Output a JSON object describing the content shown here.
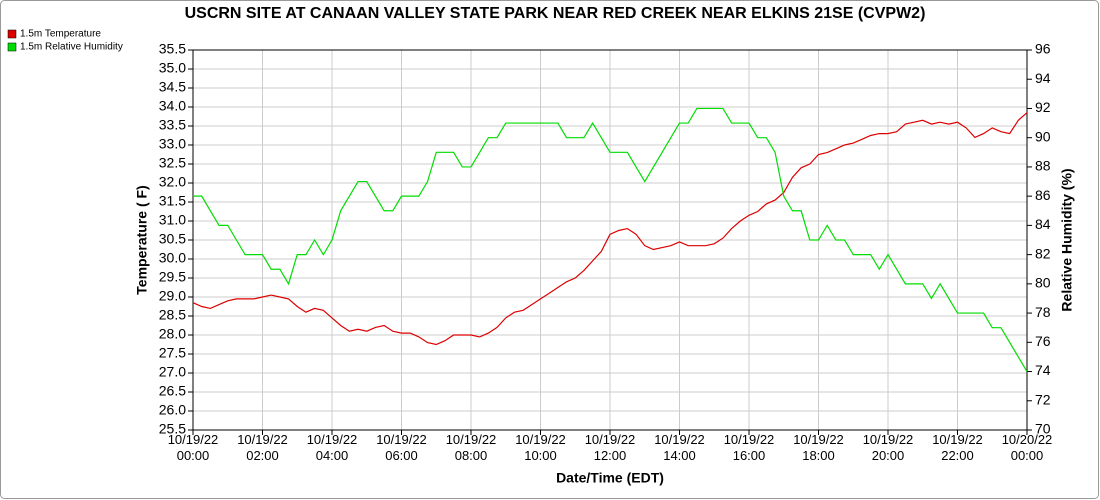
{
  "chart_data": {
    "type": "line",
    "title": "USCRN SITE AT CANAAN VALLEY STATE PARK NEAR RED CREEK NEAR ELKINS 21SE (CVPW2)",
    "xlabel": "Date/Time (EDT)",
    "ylabel": "Temperature ( F)",
    "y2label": "Relative Humidity (%)",
    "x": [
      "10/19/22 00:00",
      "10/19/22 00:15",
      "10/19/22 00:30",
      "10/19/22 00:45",
      "10/19/22 01:00",
      "10/19/22 01:15",
      "10/19/22 01:30",
      "10/19/22 01:45",
      "10/19/22 02:00",
      "10/19/22 02:15",
      "10/19/22 02:30",
      "10/19/22 02:45",
      "10/19/22 03:00",
      "10/19/22 03:15",
      "10/19/22 03:30",
      "10/19/22 03:45",
      "10/19/22 04:00",
      "10/19/22 04:15",
      "10/19/22 04:30",
      "10/19/22 04:45",
      "10/19/22 05:00",
      "10/19/22 05:15",
      "10/19/22 05:30",
      "10/19/22 05:45",
      "10/19/22 06:00",
      "10/19/22 06:15",
      "10/19/22 06:30",
      "10/19/22 06:45",
      "10/19/22 07:00",
      "10/19/22 07:15",
      "10/19/22 07:30",
      "10/19/22 07:45",
      "10/19/22 08:00",
      "10/19/22 08:15",
      "10/19/22 08:30",
      "10/19/22 08:45",
      "10/19/22 09:00",
      "10/19/22 09:15",
      "10/19/22 09:30",
      "10/19/22 09:45",
      "10/19/22 10:00",
      "10/19/22 10:15",
      "10/19/22 10:30",
      "10/19/22 10:45",
      "10/19/22 11:00",
      "10/19/22 11:15",
      "10/19/22 11:30",
      "10/19/22 11:45",
      "10/19/22 12:00",
      "10/19/22 12:15",
      "10/19/22 12:30",
      "10/19/22 12:45",
      "10/19/22 13:00",
      "10/19/22 13:15",
      "10/19/22 13:30",
      "10/19/22 13:45",
      "10/19/22 14:00",
      "10/19/22 14:15",
      "10/19/22 14:30",
      "10/19/22 14:45",
      "10/19/22 15:00",
      "10/19/22 15:15",
      "10/19/22 15:30",
      "10/19/22 15:45",
      "10/19/22 16:00",
      "10/19/22 16:15",
      "10/19/22 16:30",
      "10/19/22 16:45",
      "10/19/22 17:00",
      "10/19/22 17:15",
      "10/19/22 17:30",
      "10/19/22 17:45",
      "10/19/22 18:00",
      "10/19/22 18:15",
      "10/19/22 18:30",
      "10/19/22 18:45",
      "10/19/22 19:00",
      "10/19/22 19:15",
      "10/19/22 19:30",
      "10/19/22 19:45",
      "10/19/22 20:00",
      "10/19/22 20:15",
      "10/19/22 20:30",
      "10/19/22 20:45",
      "10/19/22 21:00",
      "10/19/22 21:15",
      "10/19/22 21:30",
      "10/19/22 21:45",
      "10/19/22 22:00",
      "10/19/22 22:15",
      "10/19/22 22:30",
      "10/19/22 22:45",
      "10/19/22 23:00",
      "10/19/22 23:15",
      "10/19/22 23:30",
      "10/19/22 23:45",
      "10/20/22 00:00"
    ],
    "series": [
      {
        "name": "1.5m Temperature",
        "color": "#dd0000",
        "values": [
          28.85,
          28.75,
          28.7,
          28.8,
          28.9,
          28.95,
          28.95,
          28.95,
          29.0,
          29.05,
          29.0,
          28.95,
          28.75,
          28.6,
          28.7,
          28.65,
          28.45,
          28.25,
          28.1,
          28.15,
          28.1,
          28.2,
          28.25,
          28.1,
          28.05,
          28.05,
          27.95,
          27.8,
          27.75,
          27.85,
          28.0,
          28.0,
          28.0,
          27.95,
          28.05,
          28.2,
          28.45,
          28.6,
          28.65,
          28.8,
          28.95,
          29.1,
          29.25,
          29.4,
          29.5,
          29.7,
          29.95,
          30.2,
          30.65,
          30.75,
          30.8,
          30.65,
          30.35,
          30.25,
          30.3,
          30.35,
          30.45,
          30.35,
          30.35,
          30.35,
          30.4,
          30.55,
          30.8,
          31.0,
          31.15,
          31.25,
          31.45,
          31.55,
          31.75,
          32.15,
          32.4,
          32.5,
          32.75,
          32.8,
          32.9,
          33.0,
          33.05,
          33.15,
          33.25,
          33.3,
          33.3,
          33.35,
          33.55,
          33.6,
          33.65,
          33.55,
          33.6,
          33.55,
          33.6,
          33.45,
          33.2,
          33.3,
          33.45,
          33.35,
          33.3,
          33.65,
          33.85
        ]
      },
      {
        "name": "1.5m Relative Humidity",
        "color": "#00dd00",
        "axis": "y2",
        "values": [
          86,
          86,
          85,
          84,
          84,
          83,
          82,
          82,
          82,
          81,
          81,
          80,
          82,
          82,
          83,
          82,
          83,
          85,
          86,
          87,
          87,
          86,
          85,
          85,
          86,
          86,
          86,
          87,
          89,
          89,
          89,
          88,
          88,
          89,
          90,
          90,
          91,
          91,
          91,
          91,
          91,
          91,
          91,
          90,
          90,
          90,
          91,
          90,
          89,
          89,
          89,
          88,
          87,
          88,
          89,
          90,
          91,
          91,
          92,
          92,
          92,
          92,
          91,
          91,
          91,
          90,
          90,
          89,
          86,
          85,
          85,
          83,
          83,
          84,
          83,
          83,
          82,
          82,
          82,
          81,
          82,
          81,
          80,
          80,
          80,
          79,
          80,
          79,
          78,
          78,
          78,
          78,
          77,
          77,
          76,
          75,
          74
        ]
      }
    ],
    "xlim": [
      "10/19/22 00:00",
      "10/20/22 00:00"
    ],
    "xticks": [
      "10/19/22 00:00",
      "10/19/22 02:00",
      "10/19/22 04:00",
      "10/19/22 06:00",
      "10/19/22 08:00",
      "10/19/22 10:00",
      "10/19/22 12:00",
      "10/19/22 14:00",
      "10/19/22 16:00",
      "10/19/22 18:00",
      "10/19/22 20:00",
      "10/19/22 22:00",
      "10/20/22 00:00"
    ],
    "ylim": [
      25.5,
      35.5
    ],
    "yticks": [
      25.5,
      {
        "value": 26,
        "label": "26.0"
      },
      26.5,
      {
        "value": 27,
        "label": "27.0"
      },
      27.5,
      {
        "value": 28,
        "label": "28.0"
      },
      28.5,
      {
        "value": 29,
        "label": "29.0"
      },
      29.5,
      {
        "value": 30,
        "label": "30.0"
      },
      30.5,
      {
        "value": 31,
        "label": "31.0"
      },
      31.5,
      {
        "value": 32,
        "label": "32.0"
      },
      32.5,
      {
        "value": 33,
        "label": "33.0"
      },
      33.5,
      {
        "value": 34,
        "label": "34.0"
      },
      34.5,
      {
        "value": 35,
        "label": "35.0"
      },
      35.5
    ],
    "y2lim": [
      70,
      96
    ],
    "y2ticks": [
      70,
      72,
      74,
      76,
      78,
      80,
      82,
      84,
      86,
      88,
      90,
      92,
      94,
      96
    ],
    "grid": true,
    "legend": "top-left"
  }
}
